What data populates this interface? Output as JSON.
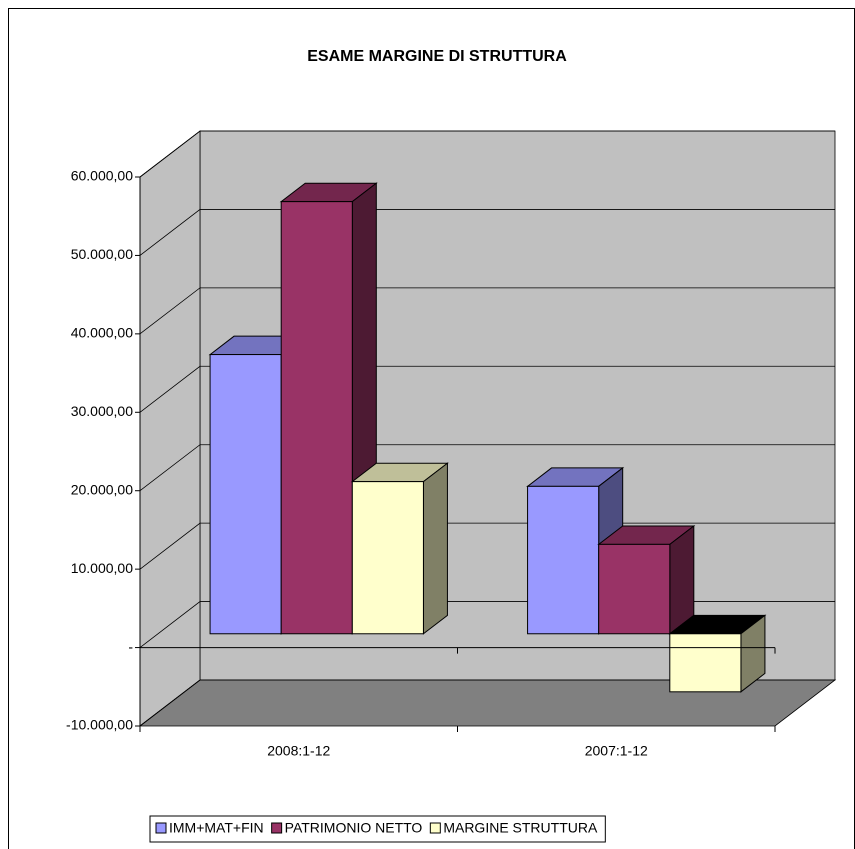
{
  "chart_data": {
    "type": "bar3d",
    "title": "ESAME MARGINE DI STRUTTURA",
    "categories": [
      "2008:1-12",
      "2007:1-12"
    ],
    "series": [
      {
        "name": "IMM+MAT+FIN",
        "color": "#9999FF",
        "values": [
          35600,
          18800
        ]
      },
      {
        "name": "PATRIMONIO NETTO",
        "color": "#993366",
        "values": [
          55100,
          11400
        ]
      },
      {
        "name": "MARGINE STRUTTURA",
        "color": "#FFFFCC",
        "values": [
          19400,
          -7400
        ]
      }
    ],
    "ylim": [
      -10000,
      60000
    ],
    "yticks": [
      {
        "value": -10000,
        "label": "-10.000,00"
      },
      {
        "value": 0,
        "label": "-"
      },
      {
        "value": 10000,
        "label": "10.000,00"
      },
      {
        "value": 20000,
        "label": "20.000,00"
      },
      {
        "value": 30000,
        "label": "30.000,00"
      },
      {
        "value": 40000,
        "label": "40.000,00"
      },
      {
        "value": 50000,
        "label": "50.000,00"
      },
      {
        "value": 60000,
        "label": "60.000,00"
      }
    ],
    "grid": true,
    "legend": "bottom"
  }
}
